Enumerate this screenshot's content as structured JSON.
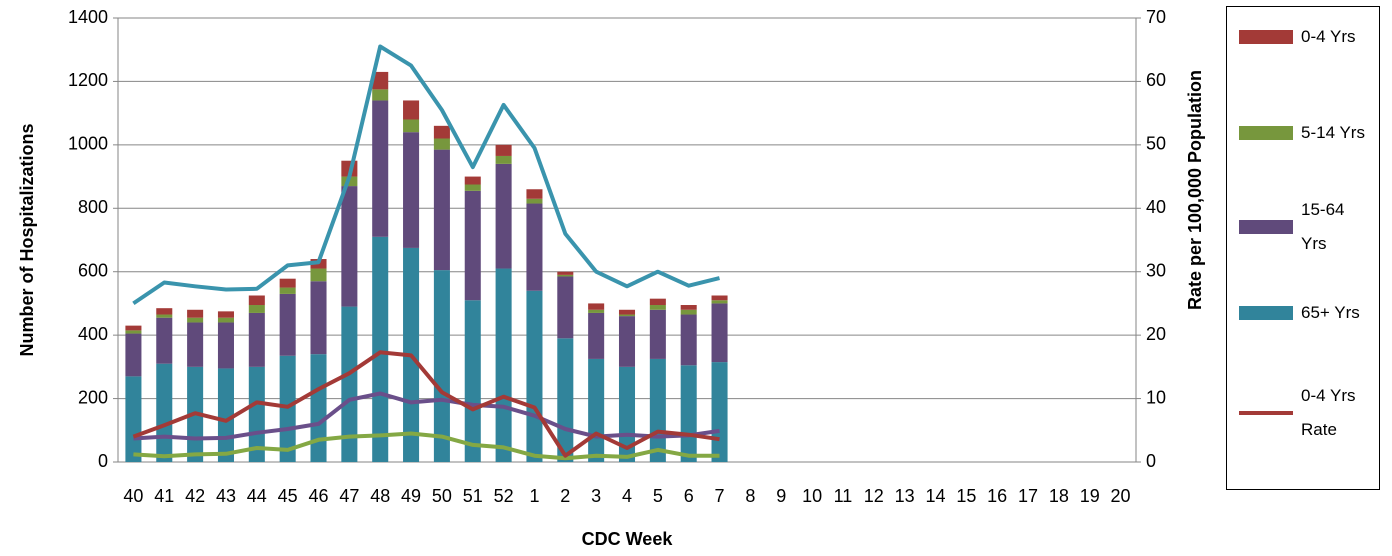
{
  "chart_data": {
    "type": "bar",
    "x_label": "CDC Week",
    "y_label": "Number of Hospitalizations",
    "y2_label": "Rate per 100,000 Population",
    "categories": [
      "40",
      "41",
      "42",
      "43",
      "44",
      "45",
      "46",
      "47",
      "48",
      "49",
      "50",
      "51",
      "52",
      "1",
      "2",
      "3",
      "4",
      "5",
      "6",
      "7",
      "8",
      "9",
      "10",
      "11",
      "12",
      "13",
      "14",
      "15",
      "16",
      "17",
      "18",
      "19",
      "20"
    ],
    "ylim": [
      0,
      1400
    ],
    "yticks": [
      0,
      200,
      400,
      600,
      800,
      1000,
      1200,
      1400
    ],
    "y2lim": [
      0,
      70
    ],
    "y2ticks": [
      0,
      10,
      20,
      30,
      40,
      50,
      60,
      70
    ],
    "grid": true,
    "stacked": true,
    "legend": "right",
    "series": [
      {
        "name": "0-4 Yrs",
        "type": "bar",
        "color": "#a33a37",
        "values": [
          15,
          20,
          25,
          20,
          30,
          28,
          30,
          50,
          55,
          60,
          40,
          25,
          35,
          30,
          10,
          20,
          15,
          20,
          15,
          15,
          null,
          null,
          null,
          null,
          null,
          null,
          null,
          null,
          null,
          null,
          null,
          null,
          null
        ]
      },
      {
        "name": "5-14 Yrs",
        "type": "bar",
        "color": "#77973d",
        "values": [
          10,
          10,
          15,
          15,
          25,
          20,
          40,
          30,
          35,
          40,
          35,
          20,
          25,
          15,
          5,
          10,
          5,
          15,
          15,
          10,
          null,
          null,
          null,
          null,
          null,
          null,
          null,
          null,
          null,
          null,
          null,
          null,
          null
        ]
      },
      {
        "name": "15-64 Yrs",
        "type": "bar",
        "color": "#604a7b",
        "values": [
          135,
          145,
          140,
          145,
          170,
          195,
          230,
          380,
          430,
          365,
          380,
          345,
          330,
          275,
          195,
          145,
          160,
          155,
          160,
          185,
          null,
          null,
          null,
          null,
          null,
          null,
          null,
          null,
          null,
          null,
          null,
          null,
          null
        ]
      },
      {
        "name": "65+ Yrs",
        "type": "bar",
        "color": "#31849b",
        "values": [
          270,
          310,
          300,
          295,
          300,
          335,
          340,
          490,
          710,
          675,
          605,
          510,
          610,
          540,
          390,
          325,
          300,
          325,
          305,
          315,
          null,
          null,
          null,
          null,
          null,
          null,
          null,
          null,
          null,
          null,
          null,
          null,
          null
        ]
      },
      {
        "name": "0-4 Yrs Rate",
        "type": "line",
        "axis": "y2",
        "color": "#a33a37",
        "values": [
          4,
          5.8,
          7.7,
          6.5,
          9.4,
          8.7,
          11.5,
          14,
          17.3,
          16.8,
          11,
          8.3,
          10.3,
          8.6,
          1,
          4.5,
          2.2,
          4.8,
          4.3,
          3.6,
          null,
          null,
          null,
          null,
          null,
          null,
          null,
          null,
          null,
          null,
          null,
          null,
          null
        ]
      },
      {
        "type": "line",
        "axis": "y2",
        "color": "#6a4f8a",
        "values": [
          3.7,
          4,
          3.7,
          3.8,
          4.6,
          5.2,
          6,
          9.8,
          10.8,
          9.4,
          9.8,
          9,
          8.7,
          7.3,
          5.2,
          4,
          4.3,
          4,
          4.2,
          4.9,
          null,
          null,
          null,
          null,
          null,
          null,
          null,
          null,
          null,
          null,
          null,
          null,
          null
        ]
      },
      {
        "type": "line",
        "axis": "y2",
        "color": "#84a844",
        "values": [
          1.2,
          0.9,
          1.2,
          1.3,
          2.2,
          1.9,
          3.5,
          4,
          4.2,
          4.5,
          4,
          2.7,
          2.3,
          1,
          0.6,
          1,
          0.8,
          1.9,
          1,
          1,
          null,
          null,
          null,
          null,
          null,
          null,
          null,
          null,
          null,
          null,
          null,
          null,
          null
        ]
      },
      {
        "type": "line",
        "axis": "y2",
        "color": "#3a94ad",
        "values": [
          25,
          28.3,
          27.7,
          27.2,
          27.3,
          31,
          31.5,
          45,
          65.5,
          62.5,
          55.5,
          46.5,
          56.3,
          49.5,
          36,
          30,
          27.7,
          30,
          27.8,
          29,
          null,
          null,
          null,
          null,
          null,
          null,
          null,
          null,
          null,
          null,
          null,
          null,
          null
        ]
      }
    ]
  }
}
